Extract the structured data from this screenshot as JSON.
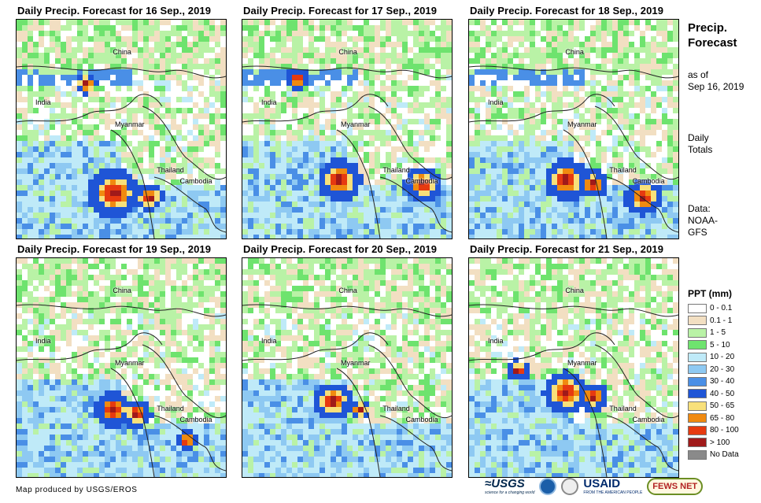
{
  "panels": [
    {
      "title": "Daily Precip. Forecast for 16 Sep., 2019"
    },
    {
      "title": "Daily Precip. Forecast for 17 Sep., 2019"
    },
    {
      "title": "Daily Precip. Forecast for 18 Sep., 2019"
    },
    {
      "title": "Daily Precip. Forecast for 19 Sep., 2019"
    },
    {
      "title": "Daily Precip. Forecast for 20 Sep., 2019"
    },
    {
      "title": "Daily Precip. Forecast for 21 Sep., 2019"
    }
  ],
  "place_labels": {
    "china": "China",
    "india": "India",
    "myanmar": "Myanmar",
    "thailand": "Thailand",
    "cambodia": "Cambodia"
  },
  "sidebar": {
    "title_line1": "Precip.",
    "title_line2": "Forecast",
    "asof_line1": "as of",
    "asof_line2": "Sep 16, 2019",
    "totals_line1": "Daily",
    "totals_line2": "Totals",
    "data_line1": "Data:",
    "data_line2": "NOAA-",
    "data_line3": "GFS"
  },
  "legend": {
    "title": "PPT (mm)",
    "items": [
      {
        "label": "0 - 0.1",
        "color": "#ffffff"
      },
      {
        "label": "0.1 - 1",
        "color": "#f2dfc2"
      },
      {
        "label": "1 - 5",
        "color": "#b9f2a6"
      },
      {
        "label": "5 - 10",
        "color": "#6ee36e"
      },
      {
        "label": "10 - 20",
        "color": "#bfeaf8"
      },
      {
        "label": "20 - 30",
        "color": "#8ec9f2"
      },
      {
        "label": "30 - 40",
        "color": "#4a8fe6"
      },
      {
        "label": "40 - 50",
        "color": "#1f55d6"
      },
      {
        "label": "50 - 65",
        "color": "#f8e07a"
      },
      {
        "label": "65 - 80",
        "color": "#f08a10"
      },
      {
        "label": "80 - 100",
        "color": "#e63a10"
      },
      {
        "label": "> 100",
        "color": "#a01a1a"
      },
      {
        "label": "No Data",
        "color": "#8a8a8a"
      }
    ]
  },
  "credit": "Map produced by USGS/EROS",
  "logos": {
    "usgs": "≈USGS",
    "usgs_tagline": "science for a changing world",
    "usaid": "USAID",
    "usaid_tagline": "FROM THE AMERICAN PEOPLE",
    "fews": "FEWS NET"
  }
}
